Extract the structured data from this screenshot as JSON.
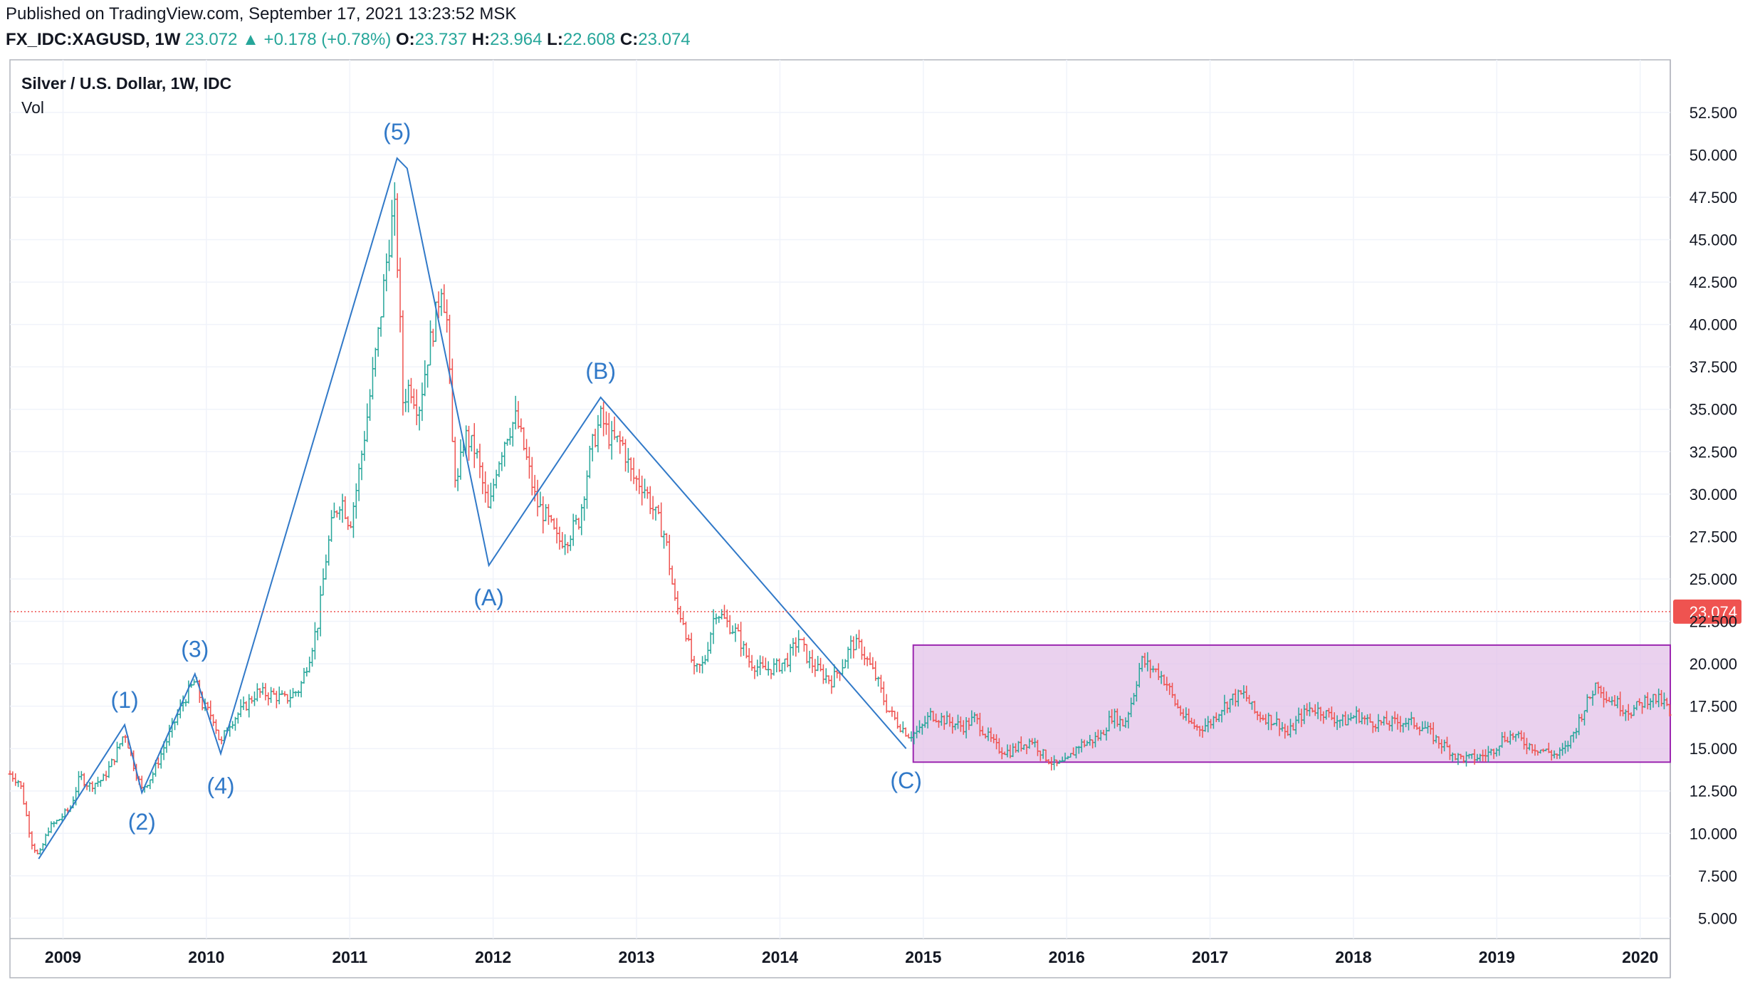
{
  "header": {
    "published": "Published on TradingView.com, September 17, 2021 13:23:52 MSK",
    "symbol": "FX_IDC:XAGUSD, 1W",
    "last": "23.072",
    "change_arrow": "▲",
    "change": "+0.178 (+0.78%)",
    "open_label": "O:",
    "open": "23.737",
    "high_label": "H:",
    "high": "23.964",
    "low_label": "L:",
    "low": "22.608",
    "close_label": "C:",
    "close": "23.074"
  },
  "overlay": {
    "title": "Silver / U.S. Dollar, 1W, IDC",
    "volume": "Vol"
  },
  "colors": {
    "up": "#26a69a",
    "down": "#ef5350",
    "wave": "#3179c8",
    "box_stroke": "#9c27b0",
    "box_fill": "#e1bee7",
    "price_line": "#ef5350"
  },
  "chart_data": {
    "type": "candlestick",
    "title": "Silver / U.S. Dollar, 1W, IDC",
    "ylim": [
      3.8,
      55.6
    ],
    "y_ticks": [
      "5.000",
      "7.500",
      "10.000",
      "12.500",
      "15.000",
      "17.500",
      "20.000",
      "22.500",
      "25.000",
      "27.500",
      "30.000",
      "32.500",
      "35.000",
      "37.500",
      "40.000",
      "42.500",
      "45.000",
      "47.500",
      "50.000",
      "52.500"
    ],
    "x_ticks": [
      "2009",
      "2010",
      "2011",
      "2012",
      "2013",
      "2014",
      "2015",
      "2016",
      "2017",
      "2018",
      "2019",
      "2020"
    ],
    "x_start": 2008.63,
    "x_end": 2020.21,
    "current_price_label": "23.074",
    "current_price": 23.074,
    "wave_points": [
      {
        "x": 2008.83,
        "y": 8.5,
        "label": ""
      },
      {
        "x": 2009.43,
        "y": 16.4,
        "label": "(1)"
      },
      {
        "x": 2009.55,
        "y": 12.4,
        "label": "(2)"
      },
      {
        "x": 2009.92,
        "y": 19.4,
        "label": "(3)"
      },
      {
        "x": 2010.1,
        "y": 14.7,
        "label": "(4)"
      },
      {
        "x": 2011.33,
        "y": 49.8,
        "label": "(5)"
      },
      {
        "x": 2011.4,
        "y": 49.2,
        "label": ""
      },
      {
        "x": 2011.97,
        "y": 25.8,
        "label": "(A)"
      },
      {
        "x": 2012.75,
        "y": 35.7,
        "label": "(B)"
      },
      {
        "x": 2014.88,
        "y": 15.0,
        "label": "(C)"
      }
    ],
    "range_box": {
      "x0": 2014.93,
      "x1": 2020.21,
      "y0": 14.2,
      "y1": 21.1
    },
    "price_path": [
      [
        2008.63,
        13.5
      ],
      [
        2008.7,
        13.0
      ],
      [
        2008.78,
        9.5
      ],
      [
        2008.83,
        8.6
      ],
      [
        2008.9,
        10.3
      ],
      [
        2008.97,
        10.8
      ],
      [
        2009.05,
        11.5
      ],
      [
        2009.12,
        13.4
      ],
      [
        2009.18,
        12.8
      ],
      [
        2009.28,
        13.2
      ],
      [
        2009.36,
        14.5
      ],
      [
        2009.43,
        16.0
      ],
      [
        2009.5,
        13.8
      ],
      [
        2009.55,
        12.6
      ],
      [
        2009.62,
        13.4
      ],
      [
        2009.7,
        15.0
      ],
      [
        2009.78,
        16.6
      ],
      [
        2009.84,
        17.8
      ],
      [
        2009.92,
        19.0
      ],
      [
        2009.97,
        17.6
      ],
      [
        2010.05,
        16.8
      ],
      [
        2010.1,
        15.2
      ],
      [
        2010.15,
        16.4
      ],
      [
        2010.25,
        17.3
      ],
      [
        2010.35,
        18.3
      ],
      [
        2010.45,
        18.2
      ],
      [
        2010.55,
        17.9
      ],
      [
        2010.65,
        18.5
      ],
      [
        2010.72,
        20.5
      ],
      [
        2010.78,
        22.5
      ],
      [
        2010.83,
        26.0
      ],
      [
        2010.88,
        28.5
      ],
      [
        2010.94,
        29.8
      ],
      [
        2011.0,
        28.2
      ],
      [
        2011.05,
        30.5
      ],
      [
        2011.12,
        34.5
      ],
      [
        2011.2,
        39.5
      ],
      [
        2011.26,
        44.0
      ],
      [
        2011.31,
        47.0
      ],
      [
        2011.34,
        42.5
      ],
      [
        2011.37,
        35.5
      ],
      [
        2011.42,
        36.5
      ],
      [
        2011.48,
        35.0
      ],
      [
        2011.55,
        38.5
      ],
      [
        2011.6,
        40.5
      ],
      [
        2011.64,
        42.5
      ],
      [
        2011.68,
        40.0
      ],
      [
        2011.72,
        32.0
      ],
      [
        2011.75,
        30.5
      ],
      [
        2011.8,
        33.5
      ],
      [
        2011.88,
        32.5
      ],
      [
        2011.97,
        28.8
      ],
      [
        2012.02,
        31.5
      ],
      [
        2012.09,
        33.5
      ],
      [
        2012.16,
        34.5
      ],
      [
        2012.22,
        32.5
      ],
      [
        2012.3,
        29.5
      ],
      [
        2012.38,
        28.5
      ],
      [
        2012.45,
        27.2
      ],
      [
        2012.52,
        27.5
      ],
      [
        2012.6,
        28.5
      ],
      [
        2012.68,
        32.5
      ],
      [
        2012.75,
        34.5
      ],
      [
        2012.82,
        33.2
      ],
      [
        2012.9,
        33.0
      ],
      [
        2012.97,
        31.0
      ],
      [
        2013.05,
        30.5
      ],
      [
        2013.12,
        29.0
      ],
      [
        2013.2,
        27.5
      ],
      [
        2013.27,
        23.5
      ],
      [
        2013.33,
        22.5
      ],
      [
        2013.4,
        19.5
      ],
      [
        2013.47,
        20.0
      ],
      [
        2013.55,
        23.2
      ],
      [
        2013.62,
        22.5
      ],
      [
        2013.7,
        21.8
      ],
      [
        2013.78,
        20.2
      ],
      [
        2013.88,
        19.6
      ],
      [
        2013.97,
        19.8
      ],
      [
        2014.05,
        20.2
      ],
      [
        2014.13,
        21.5
      ],
      [
        2014.2,
        20.2
      ],
      [
        2014.28,
        19.5
      ],
      [
        2014.36,
        19.0
      ],
      [
        2014.44,
        20.0
      ],
      [
        2014.5,
        21.2
      ],
      [
        2014.56,
        21.0
      ],
      [
        2014.62,
        20.0
      ],
      [
        2014.68,
        19.0
      ],
      [
        2014.74,
        17.5
      ],
      [
        2014.82,
        16.5
      ],
      [
        2014.9,
        15.8
      ],
      [
        2014.97,
        16.0
      ],
      [
        2015.05,
        17.0
      ],
      [
        2015.12,
        16.8
      ],
      [
        2015.2,
        16.5
      ],
      [
        2015.28,
        16.3
      ],
      [
        2015.36,
        16.8
      ],
      [
        2015.44,
        15.8
      ],
      [
        2015.52,
        15.0
      ],
      [
        2015.6,
        14.8
      ],
      [
        2015.68,
        15.2
      ],
      [
        2015.76,
        15.5
      ],
      [
        2015.84,
        14.6
      ],
      [
        2015.92,
        14.0
      ],
      [
        2016.0,
        14.2
      ],
      [
        2016.08,
        15.2
      ],
      [
        2016.16,
        15.4
      ],
      [
        2016.24,
        15.8
      ],
      [
        2016.32,
        17.0
      ],
      [
        2016.4,
        16.4
      ],
      [
        2016.46,
        18.0
      ],
      [
        2016.52,
        20.2
      ],
      [
        2016.58,
        19.8
      ],
      [
        2016.64,
        19.5
      ],
      [
        2016.7,
        18.8
      ],
      [
        2016.76,
        17.6
      ],
      [
        2016.84,
        16.6
      ],
      [
        2016.92,
        16.2
      ],
      [
        2017.0,
        16.5
      ],
      [
        2017.08,
        17.4
      ],
      [
        2017.16,
        18.0
      ],
      [
        2017.24,
        18.2
      ],
      [
        2017.32,
        17.0
      ],
      [
        2017.4,
        16.8
      ],
      [
        2017.48,
        16.5
      ],
      [
        2017.54,
        15.8
      ],
      [
        2017.62,
        16.8
      ],
      [
        2017.7,
        17.4
      ],
      [
        2017.78,
        17.2
      ],
      [
        2017.86,
        16.8
      ],
      [
        2017.94,
        16.6
      ],
      [
        2018.02,
        17.0
      ],
      [
        2018.1,
        16.6
      ],
      [
        2018.18,
        16.5
      ],
      [
        2018.26,
        16.5
      ],
      [
        2018.34,
        16.6
      ],
      [
        2018.42,
        16.5
      ],
      [
        2018.5,
        16.2
      ],
      [
        2018.58,
        15.5
      ],
      [
        2018.66,
        15.0
      ],
      [
        2018.72,
        14.5
      ],
      [
        2018.8,
        14.4
      ],
      [
        2018.88,
        14.5
      ],
      [
        2018.96,
        14.8
      ],
      [
        2019.04,
        15.6
      ],
      [
        2019.12,
        15.8
      ],
      [
        2019.2,
        15.3
      ],
      [
        2019.28,
        15.0
      ],
      [
        2019.36,
        14.8
      ],
      [
        2019.42,
        14.6
      ],
      [
        2019.48,
        15.0
      ],
      [
        2019.54,
        16.0
      ],
      [
        2019.6,
        17.2
      ],
      [
        2019.66,
        18.2
      ],
      [
        2019.7,
        19.0
      ],
      [
        2019.76,
        18.0
      ],
      [
        2019.82,
        17.8
      ],
      [
        2019.88,
        17.4
      ],
      [
        2019.94,
        17.2
      ],
      [
        2020.0,
        17.6
      ],
      [
        2020.06,
        18.0
      ],
      [
        2020.12,
        17.9
      ],
      [
        2020.18,
        17.6
      ],
      [
        2020.21,
        16.8
      ]
    ]
  }
}
